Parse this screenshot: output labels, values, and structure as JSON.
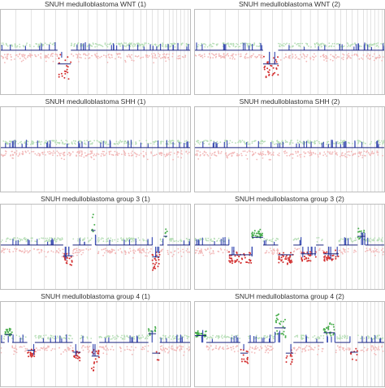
{
  "figure": {
    "type": "copy-number-profile-grid"
  },
  "colors": {
    "gain": "#4caf50",
    "loss": "#d32f2f",
    "baseline": "#1a237e",
    "probe": "#3f51b5",
    "grid": "#cfcfcf",
    "normal_gain": "#b8dfb8",
    "normal_loss": "#f2b8b8"
  },
  "chart_data": [
    {
      "type": "scatter",
      "title": "SNUH medulloblastoma WNT (1)",
      "events": [
        {
          "region": [
            0.3,
            0.37
          ],
          "kind": "loss",
          "magnitude": 0.9
        }
      ]
    },
    {
      "type": "scatter",
      "title": "SNUH medulloblastoma WNT (2)",
      "events": [
        {
          "region": [
            0.36,
            0.44
          ],
          "kind": "loss",
          "magnitude": 0.9
        }
      ]
    },
    {
      "type": "scatter",
      "title": "SNUH medulloblastoma SHH (1)",
      "events": []
    },
    {
      "type": "scatter",
      "title": "SNUH medulloblastoma SHH (2)",
      "events": []
    },
    {
      "type": "scatter",
      "title": "SNUH medulloblastoma group 3 (1)",
      "events": [
        {
          "region": [
            0.33,
            0.38
          ],
          "kind": "loss",
          "magnitude": 0.6
        },
        {
          "region": [
            0.48,
            0.5
          ],
          "kind": "gain",
          "magnitude": 1.0
        },
        {
          "region": [
            0.8,
            0.84
          ],
          "kind": "loss",
          "magnitude": 0.7
        },
        {
          "region": [
            0.86,
            0.88
          ],
          "kind": "gain",
          "magnitude": 0.4
        }
      ]
    },
    {
      "type": "scatter",
      "title": "SNUH medulloblastoma group 3 (2)",
      "events": [
        {
          "region": [
            0.18,
            0.3
          ],
          "kind": "loss",
          "magnitude": 0.5
        },
        {
          "region": [
            0.3,
            0.36
          ],
          "kind": "gain",
          "magnitude": 0.3
        },
        {
          "region": [
            0.44,
            0.52
          ],
          "kind": "loss",
          "magnitude": 0.5
        },
        {
          "region": [
            0.56,
            0.64
          ],
          "kind": "loss",
          "magnitude": 0.4
        },
        {
          "region": [
            0.68,
            0.76
          ],
          "kind": "loss",
          "magnitude": 0.4
        },
        {
          "region": [
            0.86,
            0.9
          ],
          "kind": "gain",
          "magnitude": 0.4
        }
      ]
    },
    {
      "type": "scatter",
      "title": "SNUH medulloblastoma group 4 (1)",
      "events": [
        {
          "region": [
            0.02,
            0.06
          ],
          "kind": "gain",
          "magnitude": 0.3
        },
        {
          "region": [
            0.14,
            0.18
          ],
          "kind": "loss",
          "magnitude": 0.3
        },
        {
          "region": [
            0.38,
            0.42
          ],
          "kind": "loss",
          "magnitude": 0.5
        },
        {
          "region": [
            0.48,
            0.52
          ],
          "kind": "loss",
          "magnitude": 0.9
        },
        {
          "region": [
            0.78,
            0.82
          ],
          "kind": "gain",
          "magnitude": 0.4
        },
        {
          "region": [
            0.8,
            0.84
          ],
          "kind": "loss",
          "magnitude": 0.6
        }
      ]
    },
    {
      "type": "scatter",
      "title": "SNUH medulloblastoma group 4 (2)",
      "events": [
        {
          "region": [
            0.0,
            0.06
          ],
          "kind": "gain",
          "magnitude": 0.2
        },
        {
          "region": [
            0.24,
            0.28
          ],
          "kind": "loss",
          "magnitude": 0.6
        },
        {
          "region": [
            0.42,
            0.48
          ],
          "kind": "gain",
          "magnitude": 1.0
        },
        {
          "region": [
            0.48,
            0.52
          ],
          "kind": "loss",
          "magnitude": 0.6
        },
        {
          "region": [
            0.68,
            0.74
          ],
          "kind": "gain",
          "magnitude": 0.5
        },
        {
          "region": [
            0.82,
            0.86
          ],
          "kind": "loss",
          "magnitude": 0.5
        }
      ]
    }
  ]
}
